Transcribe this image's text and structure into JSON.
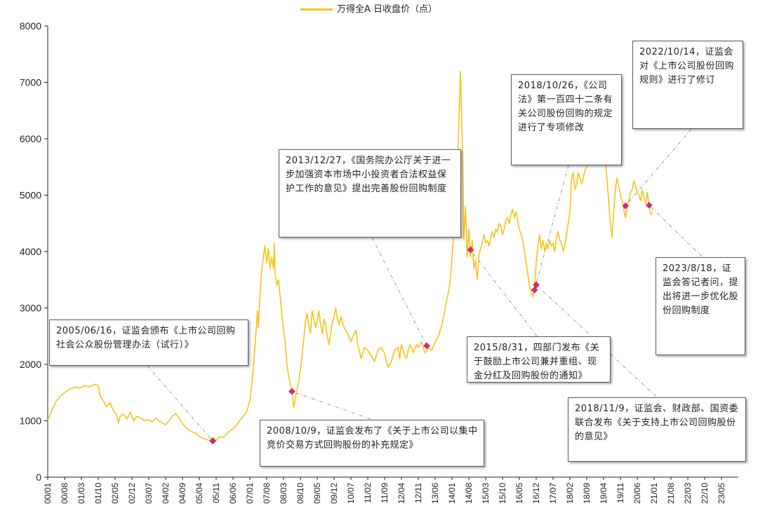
{
  "chart_data": {
    "type": "line",
    "legend": "万得全A 日收盘价（点）",
    "ylim": [
      0,
      8000
    ],
    "y_ticks": [
      0,
      1000,
      2000,
      3000,
      4000,
      5000,
      6000,
      7000,
      8000
    ],
    "x_labels": [
      "00/01",
      "00/08",
      "01/03",
      "01/10",
      "02/05",
      "02/12",
      "03/07",
      "04/02",
      "04/09",
      "05/04",
      "05/11",
      "06/06",
      "07/01",
      "07/08",
      "08/03",
      "08/10",
      "09/05",
      "09/12",
      "10/07",
      "11/02",
      "11/09",
      "12/04",
      "12/11",
      "13/06",
      "14/01",
      "14/08",
      "15/03",
      "15/10",
      "16/05",
      "16/12",
      "17/07",
      "18/02",
      "18/09",
      "19/04",
      "19/11",
      "20/06",
      "21/01",
      "21/08",
      "22/03",
      "22/10",
      "23/05"
    ],
    "line_color": "#F7C21B",
    "marker_color": "#D6287A",
    "series": [
      {
        "name": "万得全A 日收盘价（点）",
        "points": [
          [
            0.0,
            1000
          ],
          [
            0.2,
            1150
          ],
          [
            0.5,
            1350
          ],
          [
            0.8,
            1450
          ],
          [
            1.0,
            1500
          ],
          [
            1.3,
            1560
          ],
          [
            1.6,
            1600
          ],
          [
            1.9,
            1580
          ],
          [
            2.2,
            1620
          ],
          [
            2.5,
            1600
          ],
          [
            2.8,
            1650
          ],
          [
            3.0,
            1620
          ],
          [
            3.1,
            1450
          ],
          [
            3.3,
            1350
          ],
          [
            3.5,
            1250
          ],
          [
            3.7,
            1320
          ],
          [
            3.9,
            1180
          ],
          [
            4.1,
            1100
          ],
          [
            4.2,
            960
          ],
          [
            4.3,
            1080
          ],
          [
            4.5,
            1120
          ],
          [
            4.7,
            1030
          ],
          [
            4.9,
            1150
          ],
          [
            5.1,
            1000
          ],
          [
            5.3,
            1080
          ],
          [
            5.5,
            1050
          ],
          [
            5.8,
            1000
          ],
          [
            6.0,
            1020
          ],
          [
            6.2,
            980
          ],
          [
            6.4,
            1050
          ],
          [
            6.6,
            1000
          ],
          [
            6.8,
            960
          ],
          [
            7.0,
            930
          ],
          [
            7.2,
            1000
          ],
          [
            7.4,
            1080
          ],
          [
            7.6,
            1130
          ],
          [
            7.8,
            1050
          ],
          [
            8.0,
            950
          ],
          [
            8.2,
            880
          ],
          [
            8.4,
            830
          ],
          [
            8.6,
            800
          ],
          [
            8.8,
            780
          ],
          [
            9.0,
            720
          ],
          [
            9.3,
            680
          ],
          [
            9.6,
            650
          ],
          [
            9.8,
            700
          ],
          [
            10.0,
            650
          ],
          [
            10.2,
            720
          ],
          [
            10.4,
            700
          ],
          [
            10.6,
            760
          ],
          [
            10.8,
            820
          ],
          [
            11.0,
            860
          ],
          [
            11.2,
            920
          ],
          [
            11.4,
            1000
          ],
          [
            11.6,
            1080
          ],
          [
            11.8,
            1150
          ],
          [
            12.0,
            1350
          ],
          [
            12.1,
            1600
          ],
          [
            12.2,
            1900
          ],
          [
            12.3,
            2300
          ],
          [
            12.4,
            2700
          ],
          [
            12.45,
            2950
          ],
          [
            12.5,
            2650
          ],
          [
            12.6,
            3200
          ],
          [
            12.7,
            3650
          ],
          [
            12.8,
            3900
          ],
          [
            12.9,
            4100
          ],
          [
            13.0,
            3800
          ],
          [
            13.1,
            4050
          ],
          [
            13.2,
            3700
          ],
          [
            13.3,
            3900
          ],
          [
            13.4,
            3700
          ],
          [
            13.45,
            4150
          ],
          [
            13.5,
            3600
          ],
          [
            13.6,
            3400
          ],
          [
            13.7,
            3500
          ],
          [
            13.8,
            3200
          ],
          [
            13.9,
            2900
          ],
          [
            14.0,
            2600
          ],
          [
            14.1,
            2400
          ],
          [
            14.2,
            2000
          ],
          [
            14.3,
            1800
          ],
          [
            14.4,
            1650
          ],
          [
            14.5,
            1550
          ],
          [
            14.6,
            1230
          ],
          [
            14.7,
            1400
          ],
          [
            14.8,
            1550
          ],
          [
            14.9,
            1700
          ],
          [
            15.0,
            1900
          ],
          [
            15.1,
            2150
          ],
          [
            15.2,
            2450
          ],
          [
            15.3,
            2750
          ],
          [
            15.4,
            2900
          ],
          [
            15.5,
            2700
          ],
          [
            15.6,
            2550
          ],
          [
            15.7,
            2950
          ],
          [
            15.8,
            2800
          ],
          [
            15.9,
            2650
          ],
          [
            16.0,
            2780
          ],
          [
            16.1,
            2950
          ],
          [
            16.2,
            2700
          ],
          [
            16.3,
            2550
          ],
          [
            16.4,
            2800
          ],
          [
            16.5,
            2700
          ],
          [
            16.6,
            2500
          ],
          [
            16.7,
            2350
          ],
          [
            16.8,
            2550
          ],
          [
            16.9,
            2750
          ],
          [
            17.0,
            2850
          ],
          [
            17.1,
            3000
          ],
          [
            17.2,
            2800
          ],
          [
            17.3,
            2700
          ],
          [
            17.4,
            2850
          ],
          [
            17.5,
            2750
          ],
          [
            17.6,
            2650
          ],
          [
            17.8,
            2550
          ],
          [
            18.0,
            2400
          ],
          [
            18.2,
            2550
          ],
          [
            18.3,
            2600
          ],
          [
            18.4,
            2350
          ],
          [
            18.5,
            2250
          ],
          [
            18.6,
            2100
          ],
          [
            18.8,
            2300
          ],
          [
            19.0,
            2250
          ],
          [
            19.2,
            2150
          ],
          [
            19.4,
            2050
          ],
          [
            19.6,
            2250
          ],
          [
            19.8,
            2300
          ],
          [
            20.0,
            2200
          ],
          [
            20.1,
            2050
          ],
          [
            20.2,
            1950
          ],
          [
            20.4,
            2050
          ],
          [
            20.5,
            2150
          ],
          [
            20.6,
            2250
          ],
          [
            20.8,
            2300
          ],
          [
            20.9,
            2100
          ],
          [
            21.0,
            2350
          ],
          [
            21.1,
            2250
          ],
          [
            21.2,
            2150
          ],
          [
            21.3,
            2100
          ],
          [
            21.4,
            2250
          ],
          [
            21.5,
            2350
          ],
          [
            21.6,
            2300
          ],
          [
            21.7,
            2200
          ],
          [
            21.8,
            2280
          ],
          [
            21.9,
            2350
          ],
          [
            22.0,
            2300
          ],
          [
            22.2,
            2400
          ],
          [
            22.4,
            2200
          ],
          [
            22.6,
            2300
          ],
          [
            22.8,
            2250
          ],
          [
            23.0,
            2400
          ],
          [
            23.2,
            2500
          ],
          [
            23.4,
            2700
          ],
          [
            23.6,
            3000
          ],
          [
            23.8,
            3300
          ],
          [
            23.9,
            3500
          ],
          [
            24.0,
            3900
          ],
          [
            24.1,
            4300
          ],
          [
            24.2,
            4700
          ],
          [
            24.3,
            5300
          ],
          [
            24.4,
            6200
          ],
          [
            24.5,
            7200
          ],
          [
            24.6,
            6100
          ],
          [
            24.65,
            5200
          ],
          [
            24.7,
            4200
          ],
          [
            24.8,
            4800
          ],
          [
            24.9,
            3900
          ],
          [
            25.0,
            4400
          ],
          [
            25.1,
            3900
          ],
          [
            25.2,
            4200
          ],
          [
            25.3,
            3700
          ],
          [
            25.4,
            3850
          ],
          [
            25.5,
            3500
          ],
          [
            25.6,
            3950
          ],
          [
            25.7,
            4050
          ],
          [
            25.8,
            4150
          ],
          [
            25.9,
            4300
          ],
          [
            26.0,
            4150
          ],
          [
            26.1,
            4200
          ],
          [
            26.2,
            4100
          ],
          [
            26.3,
            4250
          ],
          [
            26.4,
            4350
          ],
          [
            26.5,
            4250
          ],
          [
            26.6,
            4400
          ],
          [
            26.7,
            4350
          ],
          [
            26.8,
            4500
          ],
          [
            26.9,
            4450
          ],
          [
            27.0,
            4300
          ],
          [
            27.1,
            4400
          ],
          [
            27.2,
            4550
          ],
          [
            27.3,
            4600
          ],
          [
            27.4,
            4500
          ],
          [
            27.5,
            4650
          ],
          [
            27.6,
            4750
          ],
          [
            27.7,
            4600
          ],
          [
            27.8,
            4700
          ],
          [
            27.9,
            4550
          ],
          [
            28.0,
            4400
          ],
          [
            28.1,
            4300
          ],
          [
            28.2,
            4200
          ],
          [
            28.3,
            4000
          ],
          [
            28.4,
            3800
          ],
          [
            28.5,
            3600
          ],
          [
            28.6,
            3400
          ],
          [
            28.7,
            3300
          ],
          [
            28.8,
            3200
          ],
          [
            28.9,
            3350
          ],
          [
            29.0,
            3800
          ],
          [
            29.1,
            4100
          ],
          [
            29.2,
            4300
          ],
          [
            29.3,
            4050
          ],
          [
            29.4,
            4200
          ],
          [
            29.5,
            4000
          ],
          [
            29.6,
            4150
          ],
          [
            29.7,
            4050
          ],
          [
            29.8,
            4200
          ],
          [
            29.9,
            4100
          ],
          [
            30.0,
            4150
          ],
          [
            30.1,
            4000
          ],
          [
            30.2,
            4250
          ],
          [
            30.3,
            4350
          ],
          [
            30.4,
            4200
          ],
          [
            30.5,
            4150
          ],
          [
            30.6,
            4000
          ],
          [
            30.7,
            4100
          ],
          [
            30.8,
            4300
          ],
          [
            31.0,
            4700
          ],
          [
            31.1,
            5300
          ],
          [
            31.2,
            5400
          ],
          [
            31.3,
            5100
          ],
          [
            31.4,
            5200
          ],
          [
            31.5,
            5400
          ],
          [
            31.6,
            5300
          ],
          [
            31.7,
            5200
          ],
          [
            31.8,
            5300
          ],
          [
            31.9,
            5450
          ],
          [
            32.0,
            5500
          ],
          [
            32.1,
            5600
          ],
          [
            32.2,
            5700
          ],
          [
            32.3,
            5650
          ],
          [
            32.4,
            5800
          ],
          [
            32.5,
            5750
          ],
          [
            32.6,
            5900
          ],
          [
            32.7,
            5850
          ],
          [
            32.8,
            6000
          ],
          [
            32.9,
            5900
          ],
          [
            33.0,
            5800
          ],
          [
            33.1,
            5600
          ],
          [
            33.2,
            5300
          ],
          [
            33.3,
            4900
          ],
          [
            33.4,
            4500
          ],
          [
            33.5,
            4250
          ],
          [
            33.6,
            4700
          ],
          [
            33.7,
            5100
          ],
          [
            33.8,
            5300
          ],
          [
            33.9,
            5150
          ],
          [
            34.0,
            5000
          ],
          [
            34.1,
            4900
          ],
          [
            34.2,
            4750
          ],
          [
            34.3,
            4600
          ],
          [
            34.4,
            4800
          ],
          [
            34.5,
            4900
          ],
          [
            34.6,
            5050
          ],
          [
            34.7,
            5100
          ],
          [
            34.8,
            5250
          ],
          [
            34.9,
            5150
          ],
          [
            35.0,
            5050
          ],
          [
            35.1,
            5000
          ],
          [
            35.2,
            4900
          ],
          [
            35.3,
            5100
          ],
          [
            35.4,
            4950
          ],
          [
            35.5,
            4850
          ],
          [
            35.6,
            5050
          ],
          [
            35.7,
            4800
          ],
          [
            35.8,
            4650
          ],
          [
            35.9,
            4700
          ]
        ]
      }
    ],
    "markers": [
      {
        "x": 9.8,
        "y": 640
      },
      {
        "x": 14.5,
        "y": 1520
      },
      {
        "x": 22.5,
        "y": 2330
      },
      {
        "x": 25.1,
        "y": 4030
      },
      {
        "x": 28.9,
        "y": 3320
      },
      {
        "x": 29.0,
        "y": 3410
      },
      {
        "x": 34.3,
        "y": 4810
      },
      {
        "x": 35.7,
        "y": 4820
      }
    ],
    "annotations": [
      {
        "text": "2005/06/16，证监会颁布《上市公司回购社会公众股份管理办法（试行）》"
      },
      {
        "text": "2008/10/9，证监会发布了《关于上市公司以集中竞价交易方式回购股份的补充规定》"
      },
      {
        "text": "2013/12/27，《国务院办公厅关于进一步加强资本市场中小投资者合法权益保护工作的意见》提出完善股份回购制度"
      },
      {
        "text": "2015/8/31，四部门发布《关于鼓励上市公司兼并重组、现金分红及回购股份的通知》"
      },
      {
        "text": "2018/10/26，《公司法》第一百四十二条有关公司股份回购的规定进行了专项修改"
      },
      {
        "text": "2018/11/9，证监会、财政部、国资委联合发布《关于支持上市公司回购股份的意见》"
      },
      {
        "text": "2022/10/14，证监会对《上市公司股份回购规则》进行了修订"
      },
      {
        "text": "2023/8/18，证监会答记者问，提出将进一步优化股份回购制度"
      }
    ]
  }
}
